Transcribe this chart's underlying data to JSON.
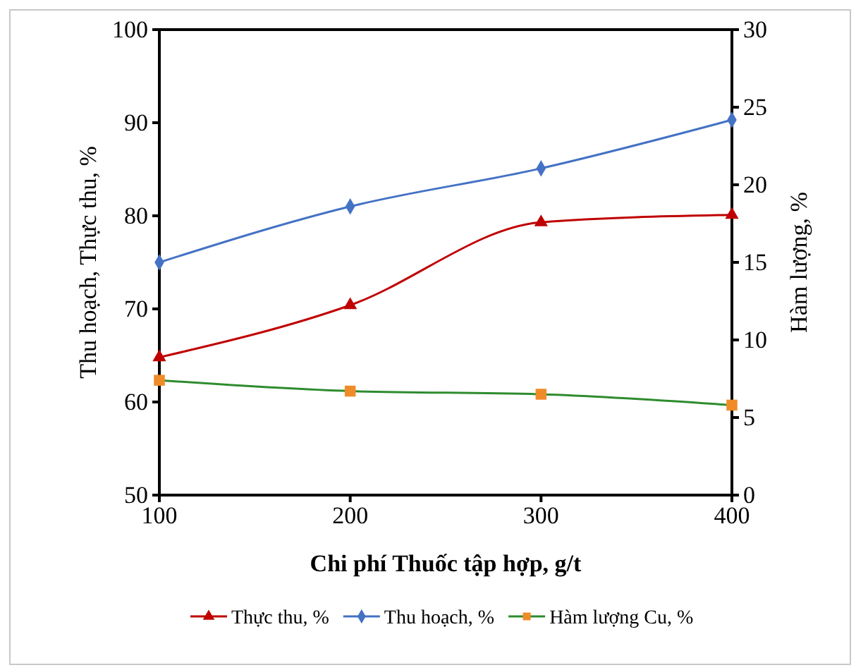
{
  "chart_data": {
    "type": "line",
    "xlabel": "Chi phí Thuốc tập hợp, g/t",
    "ylabel": "Thu hoạch, Thực thu, %",
    "y2label": "Hàm lượng, %",
    "x": [
      100,
      200,
      300,
      400
    ],
    "xlim": [
      100,
      400
    ],
    "xticks": [
      100,
      200,
      300,
      400
    ],
    "ylim": [
      50,
      100
    ],
    "yticks": [
      50,
      60,
      70,
      80,
      90,
      100
    ],
    "y2lim": [
      0,
      30
    ],
    "y2ticks": [
      0,
      5,
      10,
      15,
      20,
      25,
      30
    ],
    "legend": "bottom",
    "grid": false,
    "series": [
      {
        "name": "Thực thu, %",
        "color": "#c00000",
        "marker": "triangle",
        "values": [
          64.8,
          70.4,
          79.3,
          80.1
        ]
      },
      {
        "name": "Thu hoạch, %",
        "color": "#4472c4",
        "marker": "diamond",
        "values": [
          75,
          81,
          85.1,
          90.3
        ]
      },
      {
        "name": "Hàm lượng Cu, %",
        "color": "#2e8b2e",
        "marker": "square",
        "axis": "y2",
        "values": [
          7.4,
          6.7,
          6.5,
          5.8
        ]
      }
    ]
  }
}
